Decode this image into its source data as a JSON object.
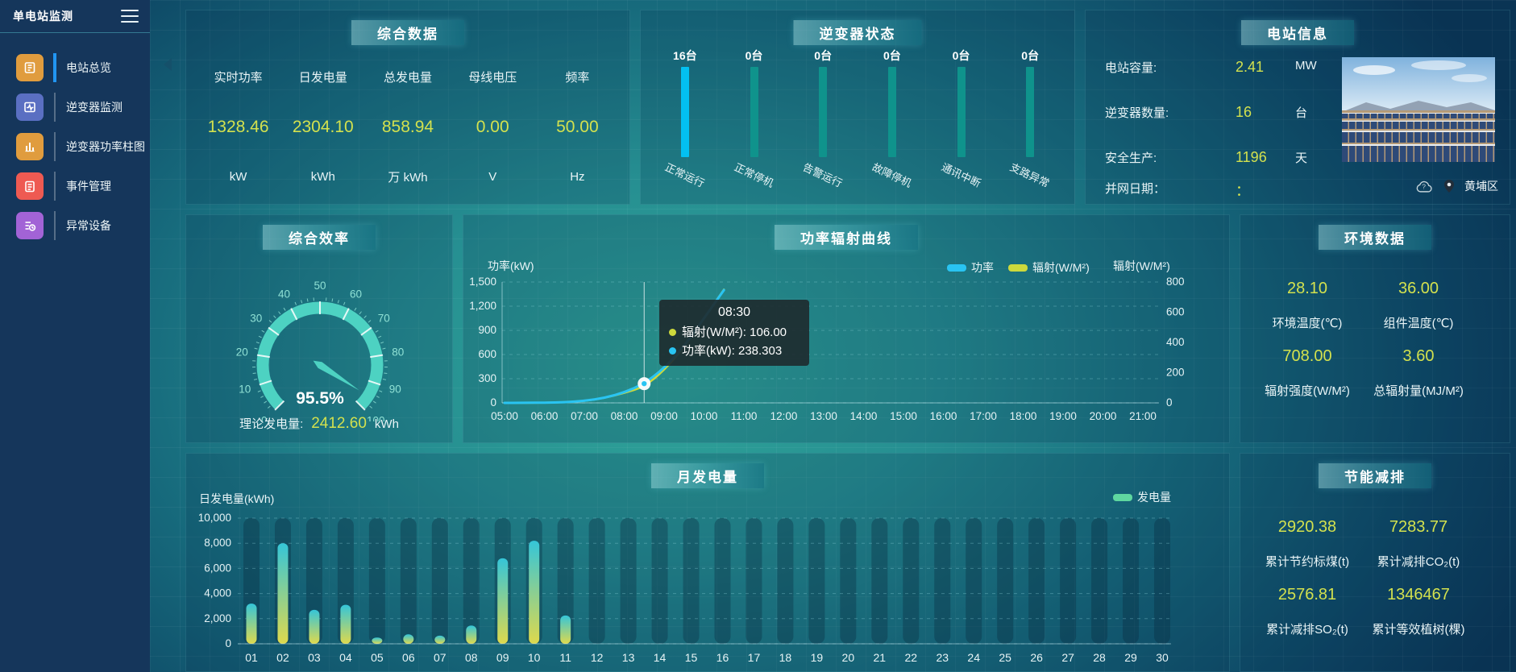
{
  "app": {
    "title": "单电站监测"
  },
  "sidebar": {
    "items": [
      {
        "label": "电站总览",
        "icon": "overview-icon",
        "color": "#e09c3e",
        "active": true
      },
      {
        "label": "逆变器监测",
        "icon": "inverter-monitor-icon",
        "color": "#5a6fc2",
        "active": false
      },
      {
        "label": "逆变器功率柱图",
        "icon": "power-bar-icon",
        "color": "#e09c3e",
        "active": false
      },
      {
        "label": "事件管理",
        "icon": "event-icon",
        "color": "#ee5a52",
        "active": false
      },
      {
        "label": "异常设备",
        "icon": "abnormal-icon",
        "color": "#a263d6",
        "active": false
      }
    ]
  },
  "panels": {
    "summary": {
      "title": "综合数据",
      "metrics": [
        {
          "label": "实时功率",
          "value": "1328.46",
          "unit": "kW"
        },
        {
          "label": "日发电量",
          "value": "2304.10",
          "unit": "kWh"
        },
        {
          "label": "总发电量",
          "value": "858.94",
          "unit": "万 kWh"
        },
        {
          "label": "母线电压",
          "value": "0.00",
          "unit": "V"
        },
        {
          "label": "频率",
          "value": "50.00",
          "unit": "Hz"
        }
      ]
    },
    "station": {
      "title": "电站信息",
      "rows": [
        {
          "label": "电站容量:",
          "value": "2.41",
          "unit": "MW"
        },
        {
          "label": "逆变器数量:",
          "value": "16",
          "unit": "台"
        },
        {
          "label": "安全生产:",
          "value": "1196",
          "unit": "天"
        },
        {
          "label": "并网日期：",
          "value": "：",
          "unit": ""
        }
      ],
      "location": "黄埔区"
    },
    "efficiency": {
      "title": "综合效率",
      "footer_label": "理论发电量:",
      "footer_value": "2412.60",
      "footer_unit": "kWh"
    },
    "environment": {
      "title": "环境数据",
      "metrics": [
        {
          "value": "28.10",
          "label": "环境温度(℃)"
        },
        {
          "value": "36.00",
          "label": "组件温度(℃)"
        },
        {
          "value": "708.00",
          "label": "辐射强度(W/M²)"
        },
        {
          "value": "3.60",
          "label": "总辐射量(MJ/M²)"
        }
      ]
    },
    "savings": {
      "title": "节能减排",
      "metrics": [
        {
          "value": "2920.38",
          "label": "累计节约标煤(t)"
        },
        {
          "value": "7283.77",
          "label": "累计减排CO₂(t)"
        },
        {
          "value": "2576.81",
          "label": "累计减排SO₂(t)"
        },
        {
          "value": "1346467",
          "label": "累计等效植树(棵)"
        }
      ]
    }
  },
  "chart_data": [
    {
      "id": "inverter_status",
      "type": "bar",
      "title": "逆变器状态",
      "categories": [
        "正常运行",
        "正常停机",
        "告警运行",
        "故障停机",
        "通讯中断",
        "支路异常"
      ],
      "values": [
        16,
        0,
        0,
        0,
        0,
        0
      ],
      "value_labels": [
        "16台",
        "0台",
        "0台",
        "0台",
        "0台",
        "0台"
      ],
      "bar_colors": [
        "#03c0f1",
        "#0f938c",
        "#0f938c",
        "#0f938c",
        "#0f938c",
        "#0f938c"
      ],
      "unit": "台"
    },
    {
      "id": "efficiency_gauge",
      "type": "gauge",
      "min": 0,
      "max": 100,
      "value": 95.5,
      "label": "95.5%",
      "tick_labels": [
        0,
        10,
        20,
        30,
        40,
        50,
        60,
        70,
        80,
        90,
        100
      ],
      "band_color": "#4dd2c2"
    },
    {
      "id": "power_radiation",
      "type": "line",
      "title": "功率辐射曲线",
      "x_hours": [
        "05:00",
        "05:30",
        "06:00",
        "06:30",
        "07:00",
        "07:30",
        "08:00",
        "08:30",
        "09:00",
        "09:30",
        "10:00",
        "10:30"
      ],
      "series": [
        {
          "name": "功率",
          "color": "#29c4f2",
          "axis": "left",
          "values": [
            0,
            1,
            3,
            8,
            25,
            60,
            130,
            238.303,
            430,
            700,
            1050,
            1400
          ]
        },
        {
          "name": "辐射(W/M²)",
          "color": "#cdd93c",
          "axis": "right",
          "values": [
            0,
            0,
            1,
            4,
            12,
            32,
            65,
            106,
            215,
            370,
            560,
            750
          ]
        }
      ],
      "left_axis": {
        "label": "功率(kW)",
        "min": 0,
        "max": 1500,
        "ticks": [
          "0",
          "300",
          "600",
          "900",
          "1,200",
          "1,500"
        ]
      },
      "right_axis": {
        "label": "辐射(W/M²)",
        "min": 0,
        "max": 800,
        "ticks": [
          "0",
          "200",
          "400",
          "600",
          "800"
        ]
      },
      "x_axis_labels": [
        "05:00",
        "06:00",
        "07:00",
        "08:00",
        "09:00",
        "10:00",
        "11:00",
        "12:00",
        "13:00",
        "14:00",
        "15:00",
        "16:00",
        "17:00",
        "18:00",
        "19:00",
        "20:00",
        "21:00"
      ],
      "tooltip": {
        "time": "08:30",
        "items": [
          {
            "dot": "#cdd93c",
            "text": "辐射(W/M²): 106.00"
          },
          {
            "dot": "#29c4f2",
            "text": "功率(kW): 238.303"
          }
        ]
      },
      "marker": {
        "x": "08:30",
        "power": 238.303
      },
      "grid": true,
      "legend_position": "top-right"
    },
    {
      "id": "monthly_generation",
      "type": "bar",
      "title": "月发电量",
      "ylabel": "日发电量(kWh)",
      "legend": "发电量",
      "legend_color": "#5fd7a0",
      "categories": [
        "01",
        "02",
        "03",
        "04",
        "05",
        "06",
        "07",
        "08",
        "09",
        "10",
        "11",
        "12",
        "13",
        "14",
        "15",
        "16",
        "17",
        "18",
        "19",
        "20",
        "21",
        "22",
        "23",
        "24",
        "25",
        "26",
        "27",
        "28",
        "29",
        "30"
      ],
      "values": [
        3200,
        8000,
        2700,
        3100,
        500,
        750,
        650,
        1450,
        6800,
        8200,
        2250,
        0,
        0,
        0,
        0,
        0,
        0,
        0,
        0,
        0,
        0,
        0,
        0,
        0,
        0,
        0,
        0,
        0,
        0,
        0
      ],
      "ylim": [
        0,
        10000
      ],
      "yticks": [
        "0",
        "2,000",
        "4,000",
        "6,000",
        "8,000",
        "10,000"
      ],
      "bar_gradient": [
        "#ded94d",
        "#35c5d8"
      ],
      "grid": true
    }
  ]
}
